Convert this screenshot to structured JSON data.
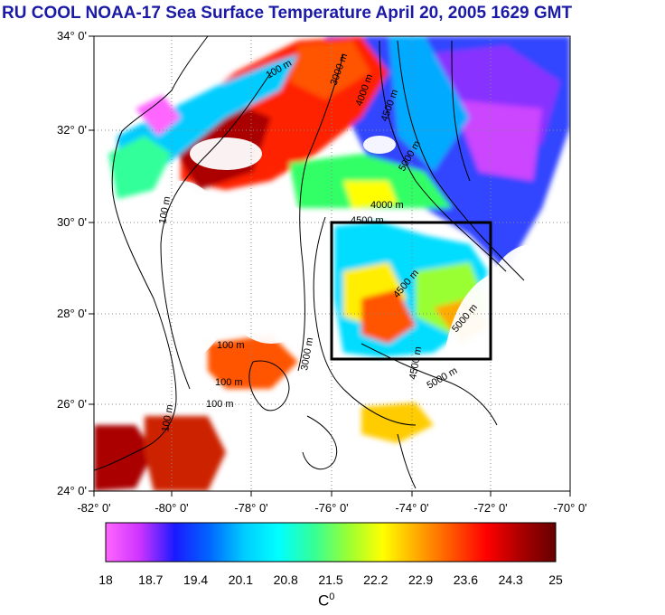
{
  "title": "RU COOL  NOAA-17 Sea Surface Temperature April 20, 2005 1629 GMT",
  "y_ticks": [
    "34° 0'",
    "32° 0'",
    "30° 0'",
    "28° 0'",
    "26° 0'",
    "24° 0'"
  ],
  "x_ticks": [
    "-82° 0'",
    "-80° 0'",
    "-78° 0'",
    "-76° 0'",
    "-74° 0'",
    "-72° 0'",
    "-70° 0'"
  ],
  "colorbar": {
    "ticks": [
      "18",
      "18.7",
      "19.4",
      "20.1",
      "20.8",
      "21.5",
      "22.2",
      "22.9",
      "23.6",
      "24.3",
      "25"
    ],
    "unit_base": "C",
    "unit_sup": "0",
    "min": 18,
    "max": 25,
    "colors": [
      "#ff66ff",
      "#cc33ff",
      "#1a1aff",
      "#0066ff",
      "#00ccff",
      "#00ffff",
      "#33ff99",
      "#99ff33",
      "#ffff00",
      "#ffaa00",
      "#ff5500",
      "#ff0000",
      "#aa0000",
      "#660000"
    ]
  },
  "contour_labels": [
    "100 m",
    "3000 m",
    "4000 m",
    "4500 m",
    "5000 m"
  ],
  "study_box": {
    "lon": [
      -76,
      -72
    ],
    "lat": [
      27,
      30
    ]
  }
}
